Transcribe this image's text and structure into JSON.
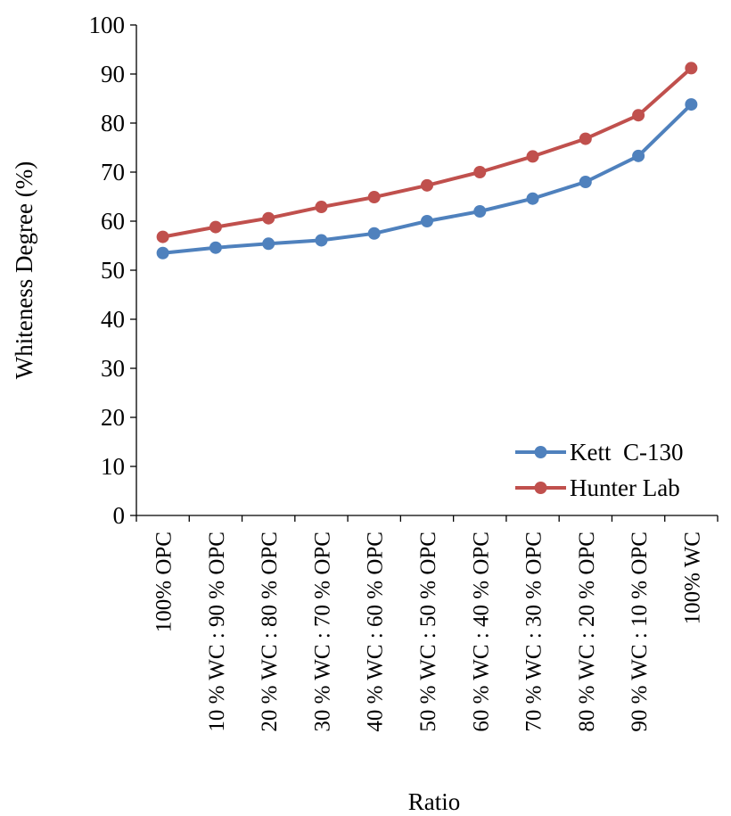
{
  "chart_data": {
    "type": "line",
    "title": "",
    "xlabel": "Ratio",
    "ylabel": "Whiteness Degree (%)",
    "ylim": [
      0,
      100
    ],
    "yticks": [
      0,
      10,
      20,
      30,
      40,
      50,
      60,
      70,
      80,
      90,
      100
    ],
    "grid": false,
    "legend_position": "bottom-right",
    "categories": [
      "100% OPC",
      "10 % WC : 90 % OPC",
      "20 % WC : 80 % OPC",
      "30 % WC : 70 % OPC",
      "40 % WC : 60 % OPC",
      "50 % WC : 50 % OPC",
      "60 % WC : 40 % OPC",
      "70 % WC : 30 % OPC",
      "80 % WC : 20 % OPC",
      "90 % WC : 10 % OPC",
      "100%  WC"
    ],
    "series": [
      {
        "name": "Kett  C-130",
        "color": "#4F81BD",
        "values": [
          53.5,
          54.6,
          55.4,
          56.1,
          57.5,
          60.0,
          62.0,
          64.6,
          68.0,
          73.3,
          83.8
        ]
      },
      {
        "name": "Hunter Lab",
        "color": "#C0504D",
        "values": [
          56.8,
          58.8,
          60.6,
          62.9,
          64.9,
          67.3,
          70.0,
          73.2,
          76.8,
          81.6,
          91.2
        ]
      }
    ]
  }
}
